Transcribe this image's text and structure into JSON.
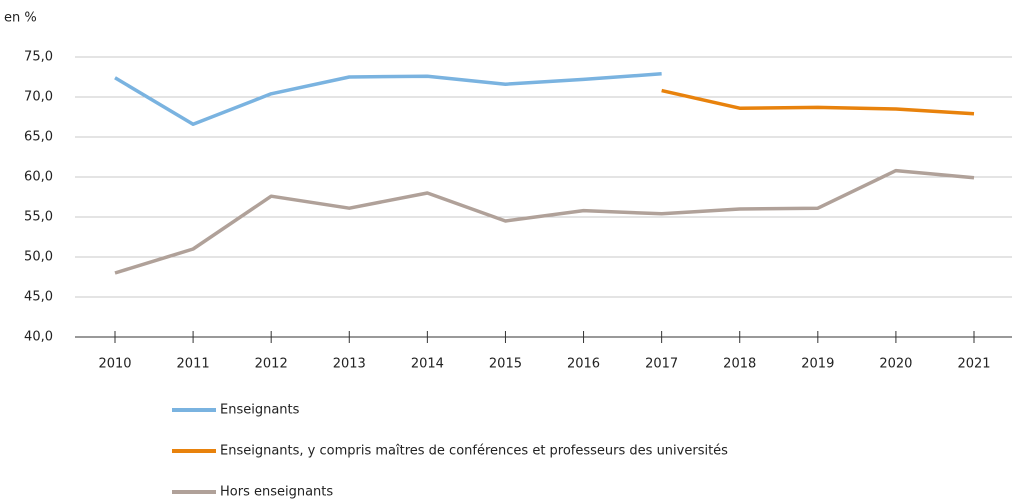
{
  "chart_data": {
    "type": "line",
    "y_axis_label": "en %",
    "categories": [
      "2010",
      "2011",
      "2012",
      "2013",
      "2014",
      "2015",
      "2016",
      "2017",
      "2018",
      "2019",
      "2020",
      "2021"
    ],
    "series": [
      {
        "name": "Enseignants",
        "color": "#7ab3e0",
        "values": [
          72.4,
          66.6,
          70.4,
          72.5,
          72.6,
          71.6,
          72.2,
          72.9,
          null,
          null,
          null,
          null
        ]
      },
      {
        "name": "Enseignants, y compris maîtres de conférences et professeurs des universités",
        "color": "#e8820c",
        "values": [
          null,
          null,
          null,
          null,
          null,
          null,
          null,
          70.8,
          68.6,
          68.7,
          68.5,
          67.9
        ]
      },
      {
        "name": "Hors enseignants",
        "color": "#b0a199",
        "values": [
          48.0,
          51.0,
          57.6,
          56.1,
          58.0,
          54.5,
          55.8,
          55.4,
          56.0,
          56.1,
          60.8,
          59.9
        ]
      }
    ],
    "ylim": [
      40,
      75
    ],
    "yticks": [
      {
        "value": 40,
        "label": "40,0"
      },
      {
        "value": 45,
        "label": "45,0"
      },
      {
        "value": 50,
        "label": "50,0"
      },
      {
        "value": 55,
        "label": "55,0"
      },
      {
        "value": 60,
        "label": "60,0"
      },
      {
        "value": 65,
        "label": "65,0"
      },
      {
        "value": 70,
        "label": "70,0"
      },
      {
        "value": 75,
        "label": "75,0"
      }
    ],
    "grid": true
  }
}
